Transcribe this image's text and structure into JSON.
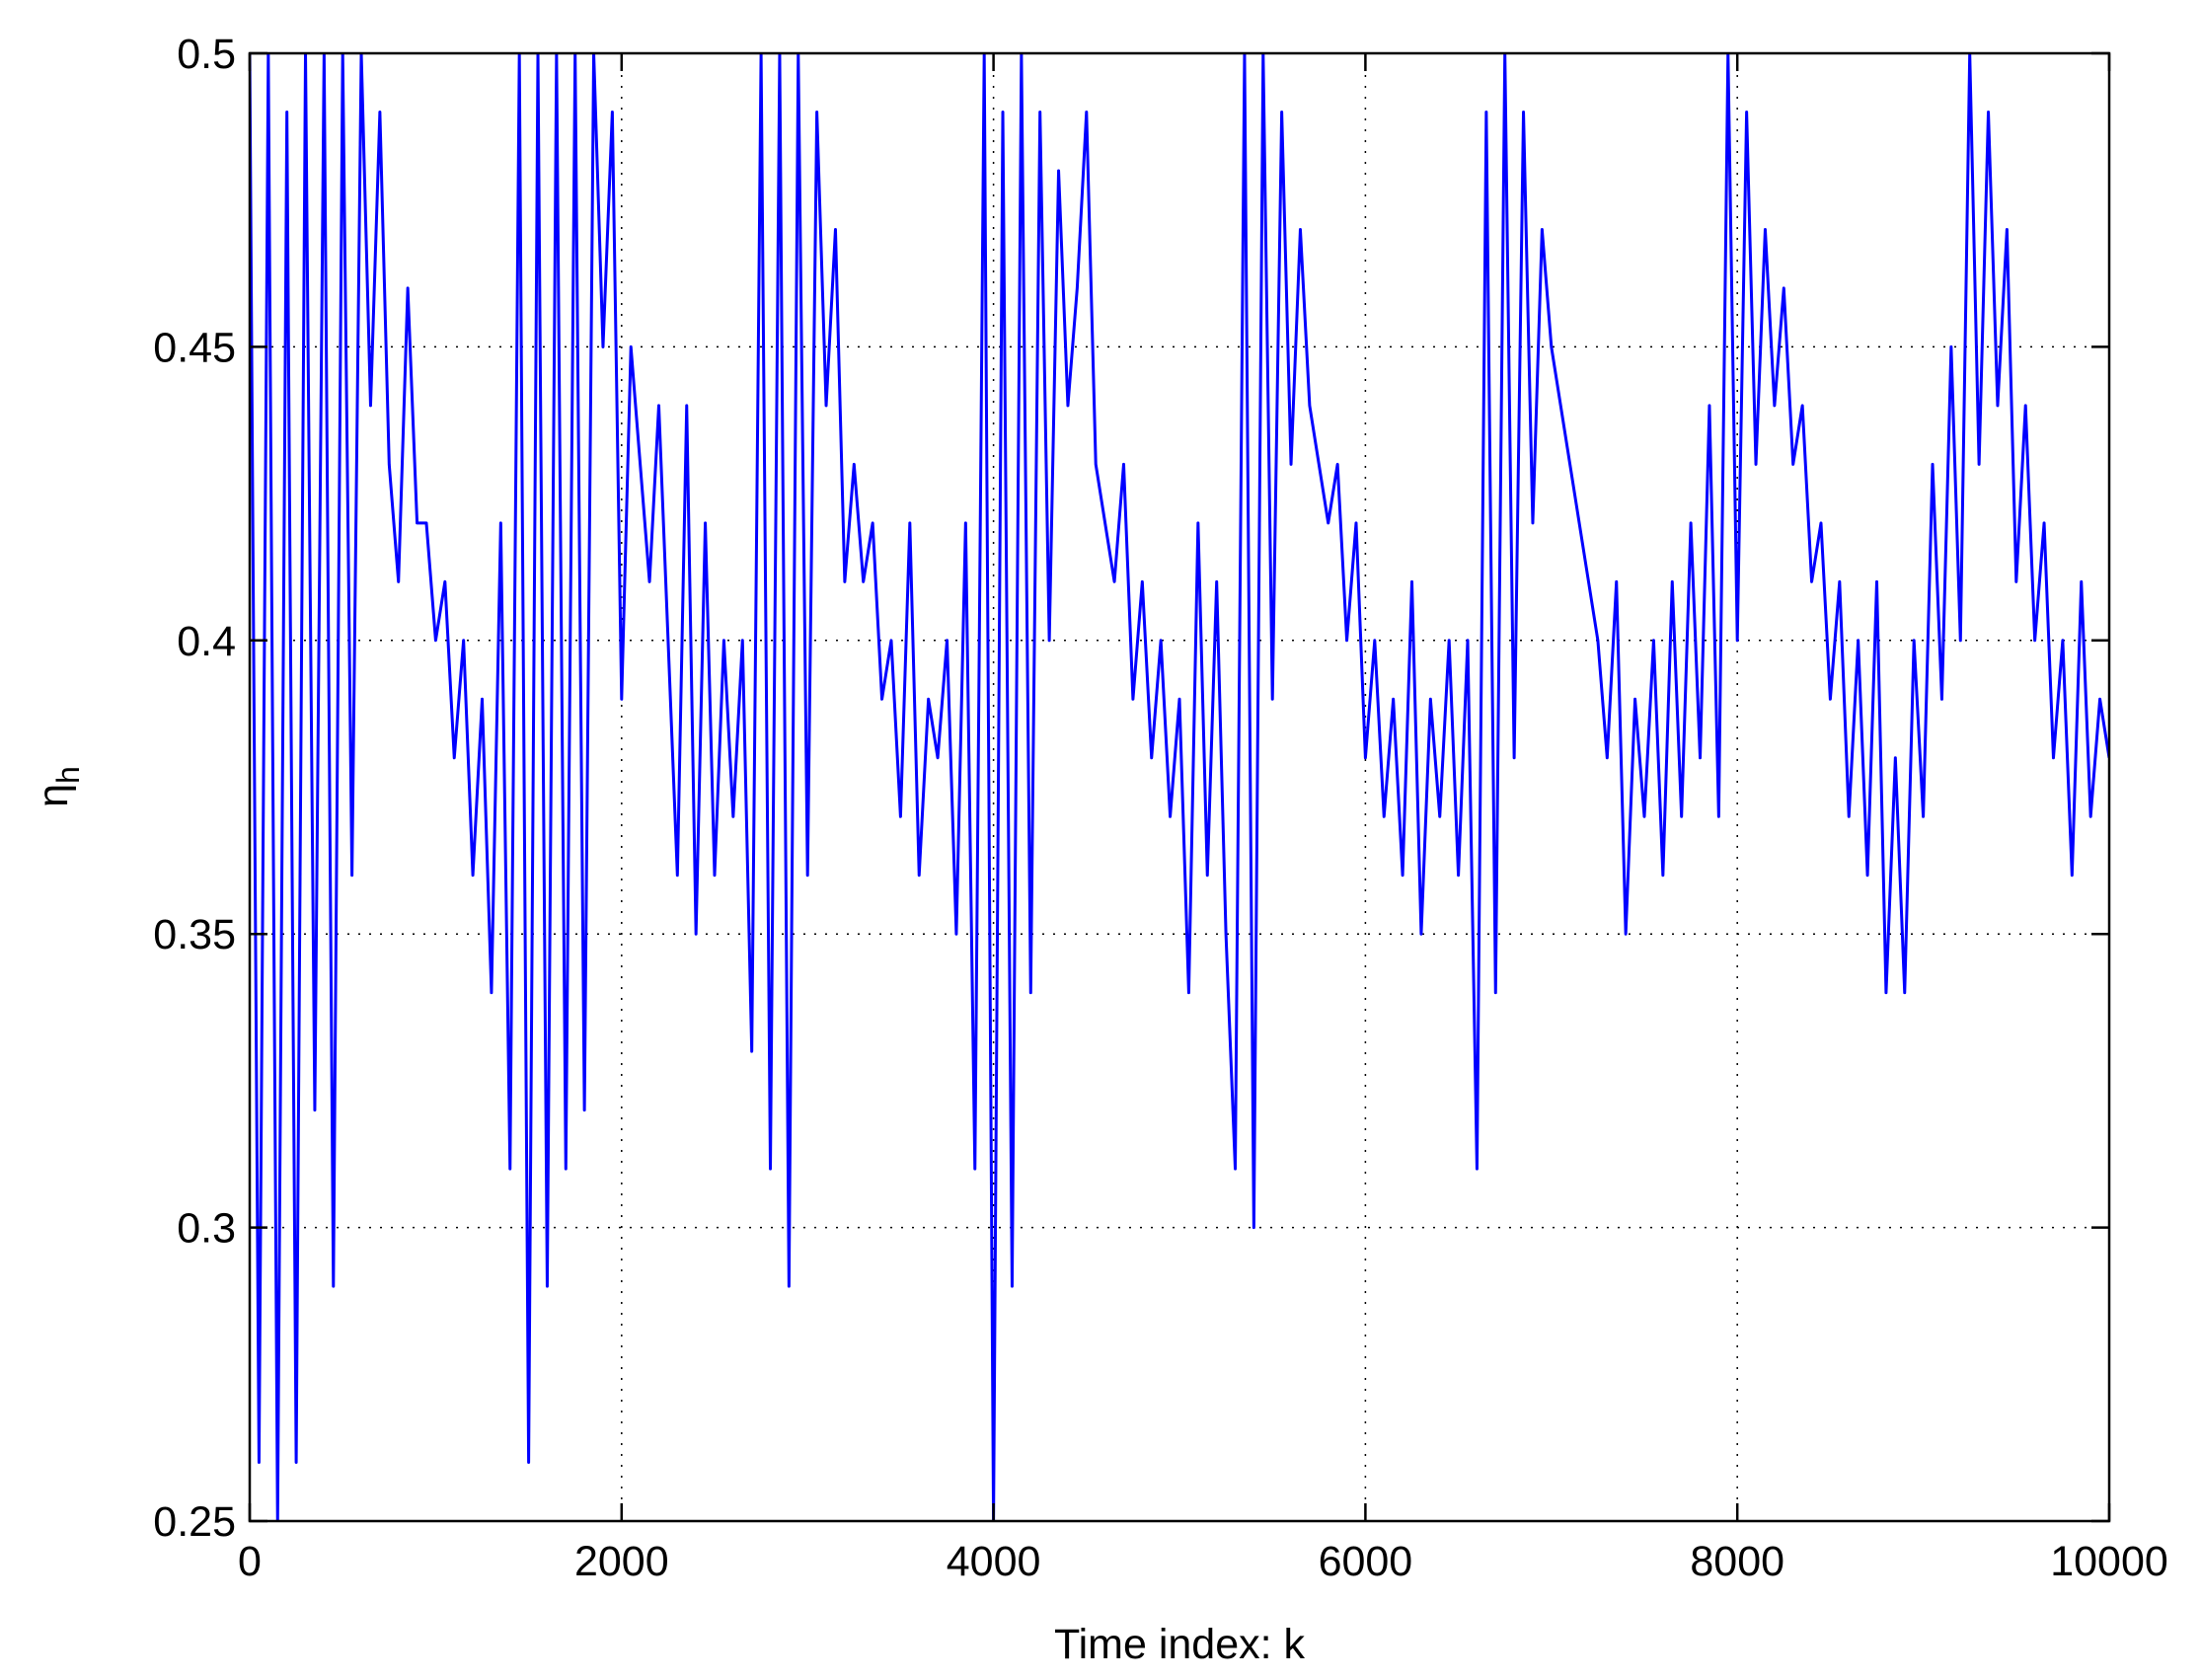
{
  "chart_data": {
    "type": "line",
    "xlabel": "Time index: k",
    "ylabel": {
      "symbol": "η",
      "subscript": "h"
    },
    "xlim": [
      0,
      10000
    ],
    "xticks": [
      0,
      2000,
      4000,
      6000,
      8000,
      10000
    ],
    "ylim": [
      0.25,
      0.5
    ],
    "yticks": [
      0.25,
      0.3,
      0.35,
      0.4,
      0.45,
      0.5
    ],
    "grid": true,
    "x": [
      0,
      50,
      100,
      150,
      200,
      250,
      300,
      350,
      400,
      450,
      500,
      550,
      600,
      650,
      700,
      750,
      800,
      850,
      900,
      950,
      1000,
      1050,
      1100,
      1150,
      1200,
      1250,
      1300,
      1350,
      1400,
      1450,
      1500,
      1550,
      1600,
      1650,
      1700,
      1750,
      1800,
      1850,
      1900,
      1950,
      2000,
      2050,
      2100,
      2150,
      2200,
      2250,
      2300,
      2350,
      2400,
      2450,
      2500,
      2550,
      2600,
      2650,
      2700,
      2750,
      2800,
      2850,
      2900,
      2950,
      3000,
      3050,
      3100,
      3150,
      3200,
      3250,
      3300,
      3350,
      3400,
      3450,
      3500,
      3550,
      3600,
      3650,
      3700,
      3750,
      3800,
      3850,
      3900,
      3950,
      4000,
      4050,
      4100,
      4150,
      4200,
      4250,
      4300,
      4350,
      4400,
      4450,
      4500,
      4550,
      4600,
      4650,
      4700,
      4750,
      4800,
      4850,
      4900,
      4950,
      5000,
      5050,
      5100,
      5150,
      5200,
      5250,
      5300,
      5350,
      5400,
      5450,
      5500,
      5550,
      5600,
      5650,
      5700,
      5750,
      5800,
      5850,
      5900,
      5950,
      6000,
      6050,
      6100,
      6150,
      6200,
      6250,
      6300,
      6350,
      6400,
      6450,
      6500,
      6550,
      6600,
      6650,
      6700,
      6750,
      6800,
      6850,
      6900,
      6950,
      7000,
      7050,
      7100,
      7150,
      7200,
      7250,
      7300,
      7350,
      7400,
      7450,
      7500,
      7550,
      7600,
      7650,
      7700,
      7750,
      7800,
      7850,
      7900,
      7950,
      8000,
      8050,
      8100,
      8150,
      8200,
      8250,
      8300,
      8350,
      8400,
      8450,
      8500,
      8550,
      8600,
      8650,
      8700,
      8750,
      8800,
      8850,
      8900,
      8950,
      9000,
      9050,
      9100,
      9150,
      9200,
      9250,
      9300,
      9350,
      9400,
      9450,
      9500,
      9550,
      9600,
      9650,
      9700,
      9750,
      9800,
      9850,
      9900,
      9950,
      10000
    ],
    "series": [
      {
        "color": "#0000ff",
        "values": [
          0.5,
          0.26,
          0.5,
          0.25,
          0.49,
          0.26,
          0.5,
          0.32,
          0.5,
          0.29,
          0.5,
          0.36,
          0.5,
          0.44,
          0.49,
          0.43,
          0.41,
          0.46,
          0.42,
          0.42,
          0.4,
          0.41,
          0.38,
          0.4,
          0.36,
          0.39,
          0.34,
          0.42,
          0.31,
          0.5,
          0.26,
          0.5,
          0.29,
          0.5,
          0.31,
          0.5,
          0.32,
          0.5,
          0.45,
          0.49,
          0.39,
          0.45,
          0.43,
          0.41,
          0.44,
          0.4,
          0.36,
          0.44,
          0.35,
          0.42,
          0.36,
          0.4,
          0.37,
          0.4,
          0.33,
          0.5,
          0.31,
          0.5,
          0.29,
          0.5,
          0.36,
          0.49,
          0.44,
          0.47,
          0.41,
          0.43,
          0.41,
          0.42,
          0.39,
          0.4,
          0.37,
          0.42,
          0.36,
          0.39,
          0.38,
          0.4,
          0.35,
          0.42,
          0.31,
          0.5,
          0.25,
          0.49,
          0.29,
          0.5,
          0.34,
          0.49,
          0.4,
          0.48,
          0.44,
          0.46,
          0.49,
          0.43,
          0.42,
          0.41,
          0.43,
          0.39,
          0.41,
          0.38,
          0.4,
          0.37,
          0.39,
          0.34,
          0.42,
          0.36,
          0.41,
          0.35,
          0.31,
          0.5,
          0.3,
          0.5,
          0.39,
          0.49,
          0.43,
          0.47,
          0.44,
          0.43,
          0.42,
          0.43,
          0.4,
          0.42,
          0.38,
          0.4,
          0.37,
          0.39,
          0.36,
          0.41,
          0.35,
          0.39,
          0.37,
          0.4,
          0.36,
          0.4,
          0.31,
          0.49,
          0.34,
          0.5,
          0.38,
          0.49,
          0.42,
          0.47,
          0.45,
          0.44,
          0.43,
          0.42,
          0.41,
          0.4,
          0.38,
          0.41,
          0.35,
          0.39,
          0.37,
          0.4,
          0.36,
          0.41,
          0.37,
          0.42,
          0.38,
          0.44,
          0.37,
          0.5,
          0.4,
          0.49,
          0.43,
          0.47,
          0.44,
          0.46,
          0.43,
          0.44,
          0.41,
          0.42,
          0.39,
          0.41,
          0.37,
          0.4,
          0.36,
          0.41,
          0.34,
          0.38,
          0.34,
          0.4,
          0.37,
          0.43,
          0.39,
          0.45,
          0.4,
          0.5,
          0.43,
          0.49,
          0.44,
          0.47,
          0.41,
          0.44,
          0.4,
          0.42,
          0.38,
          0.4,
          0.36,
          0.41,
          0.37,
          0.39,
          0.38
        ]
      }
    ]
  }
}
